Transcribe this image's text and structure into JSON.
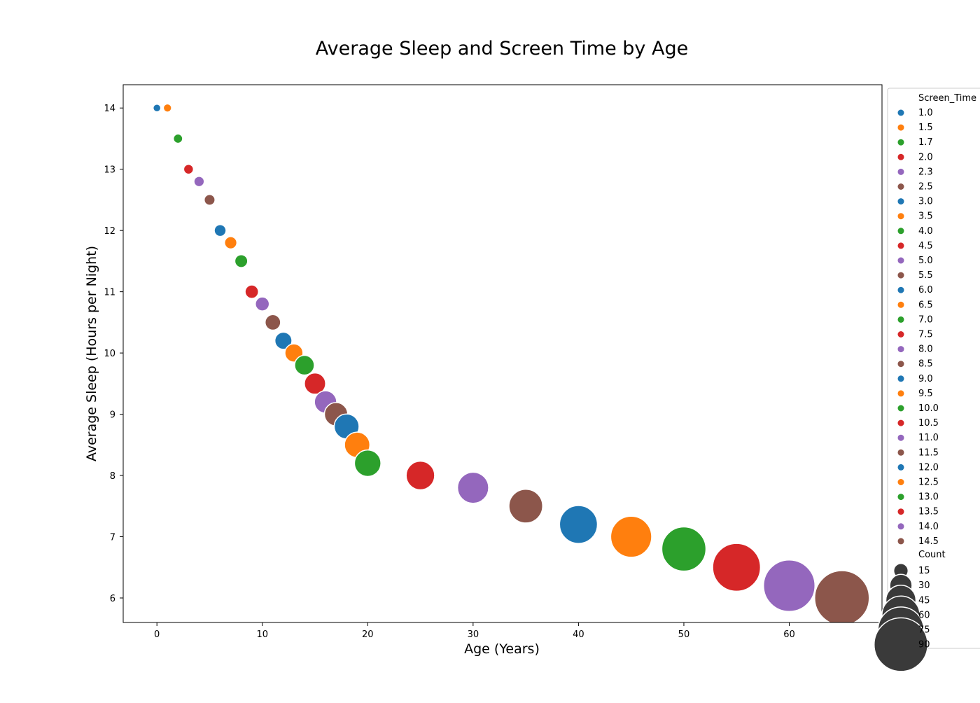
{
  "chart_data": {
    "type": "scatter",
    "title": "Average Sleep and Screen Time by Age",
    "xlabel": "Age (Years)",
    "ylabel": "Average Sleep (Hours per Night)",
    "xlim": [
      -3.2,
      68.8
    ],
    "ylim": [
      5.6,
      14.38
    ],
    "xticks": [
      0,
      10,
      20,
      30,
      40,
      50,
      60
    ],
    "yticks": [
      6,
      7,
      8,
      9,
      10,
      11,
      12,
      13,
      14
    ],
    "grid": false,
    "legend_position": "right",
    "hue_title": "Screen_Time",
    "size_title": "Count",
    "palette": [
      "#1f77b4",
      "#ff7f0e",
      "#2ca02c",
      "#d62728",
      "#9467bd",
      "#8c564b"
    ],
    "size_legend": [
      15,
      30,
      45,
      60,
      75,
      90
    ],
    "points": [
      {
        "x": 0,
        "y": 14.0,
        "screen_time": "1.0",
        "count": 2
      },
      {
        "x": 1,
        "y": 14.0,
        "screen_time": "1.5",
        "count": 3
      },
      {
        "x": 2,
        "y": 13.5,
        "screen_time": "1.7",
        "count": 5
      },
      {
        "x": 3,
        "y": 13.0,
        "screen_time": "2.0",
        "count": 6
      },
      {
        "x": 4,
        "y": 12.8,
        "screen_time": "2.3",
        "count": 7
      },
      {
        "x": 5,
        "y": 12.5,
        "screen_time": "2.5",
        "count": 8
      },
      {
        "x": 6,
        "y": 12.0,
        "screen_time": "3.0",
        "count": 10
      },
      {
        "x": 7,
        "y": 11.8,
        "screen_time": "3.5",
        "count": 11
      },
      {
        "x": 8,
        "y": 11.5,
        "screen_time": "4.0",
        "count": 12
      },
      {
        "x": 9,
        "y": 11.0,
        "screen_time": "4.5",
        "count": 13
      },
      {
        "x": 10,
        "y": 10.8,
        "screen_time": "5.0",
        "count": 14
      },
      {
        "x": 11,
        "y": 10.5,
        "screen_time": "5.5",
        "count": 17
      },
      {
        "x": 12,
        "y": 10.2,
        "screen_time": "6.0",
        "count": 20
      },
      {
        "x": 13,
        "y": 10.0,
        "screen_time": "6.5",
        "count": 22
      },
      {
        "x": 14,
        "y": 9.8,
        "screen_time": "7.0",
        "count": 25
      },
      {
        "x": 15,
        "y": 9.5,
        "screen_time": "7.5",
        "count": 28
      },
      {
        "x": 16,
        "y": 9.2,
        "screen_time": "8.0",
        "count": 30
      },
      {
        "x": 17,
        "y": 9.0,
        "screen_time": "8.5",
        "count": 32
      },
      {
        "x": 18,
        "y": 8.8,
        "screen_time": "9.0",
        "count": 35
      },
      {
        "x": 19,
        "y": 8.5,
        "screen_time": "9.5",
        "count": 36
      },
      {
        "x": 20,
        "y": 8.2,
        "screen_time": "10.0",
        "count": 38
      },
      {
        "x": 25,
        "y": 8.0,
        "screen_time": "10.5",
        "count": 42
      },
      {
        "x": 30,
        "y": 7.8,
        "screen_time": "11.0",
        "count": 47
      },
      {
        "x": 35,
        "y": 7.5,
        "screen_time": "11.5",
        "count": 52
      },
      {
        "x": 40,
        "y": 7.2,
        "screen_time": "12.0",
        "count": 60
      },
      {
        "x": 45,
        "y": 7.0,
        "screen_time": "12.5",
        "count": 66
      },
      {
        "x": 50,
        "y": 6.8,
        "screen_time": "13.0",
        "count": 72
      },
      {
        "x": 55,
        "y": 6.5,
        "screen_time": "13.5",
        "count": 79
      },
      {
        "x": 60,
        "y": 6.2,
        "screen_time": "14.0",
        "count": 86
      },
      {
        "x": 65,
        "y": 6.0,
        "screen_time": "14.5",
        "count": 92
      }
    ]
  }
}
